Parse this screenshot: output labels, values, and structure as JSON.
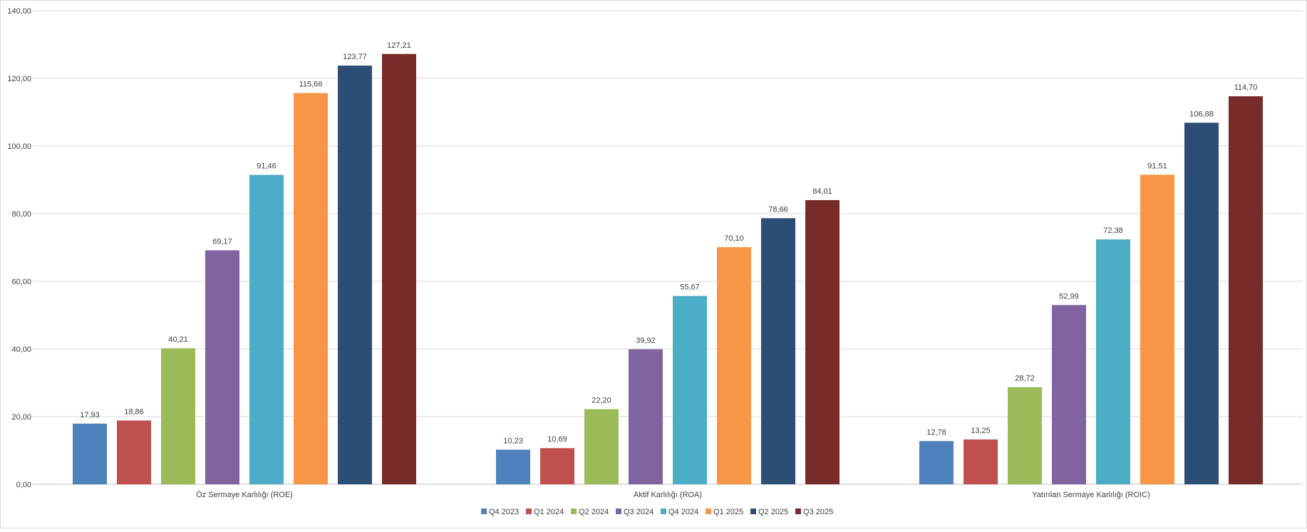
{
  "chart_data": {
    "type": "bar",
    "title": "",
    "xlabel": "",
    "ylabel": "",
    "ylim": [
      0,
      140
    ],
    "y_ticks": [
      "0,00",
      "20,00",
      "40,00",
      "60,00",
      "80,00",
      "100,00",
      "120,00",
      "140,00"
    ],
    "grid": true,
    "legend_position": "bottom",
    "categories": [
      "Öz Sermaye Karlılığı (ROE)",
      "Aktif Karlılığı (ROA)",
      "Yatırılan Sermaye Karlılığı (ROIC)"
    ],
    "series": [
      {
        "name": "Q4 2023",
        "color": "#4F81BD",
        "values": [
          17.93,
          10.23,
          12.78
        ],
        "labels": [
          "17,93",
          "10,23",
          "12,78"
        ]
      },
      {
        "name": "Q1 2024",
        "color": "#C0504D",
        "values": [
          18.86,
          10.69,
          13.25
        ],
        "labels": [
          "18,86",
          "10,69",
          "13,25"
        ]
      },
      {
        "name": "Q2 2024",
        "color": "#9BBB59",
        "values": [
          40.21,
          22.2,
          28.72
        ],
        "labels": [
          "40,21",
          "22,20",
          "28,72"
        ]
      },
      {
        "name": "Q3 2024",
        "color": "#8064A2",
        "values": [
          69.17,
          39.92,
          52.99
        ],
        "labels": [
          "69,17",
          "39,92",
          "52,99"
        ]
      },
      {
        "name": "Q4 2024",
        "color": "#4BACC6",
        "values": [
          91.46,
          55.67,
          72.38
        ],
        "labels": [
          "91,46",
          "55,67",
          "72,38"
        ]
      },
      {
        "name": "Q1 2025",
        "color": "#F79646",
        "values": [
          115.66,
          70.1,
          91.51
        ],
        "labels": [
          "115,66",
          "70,10",
          "91,51"
        ]
      },
      {
        "name": "Q2 2025",
        "color": "#2C4D75",
        "values": [
          123.77,
          78.66,
          106.88
        ],
        "labels": [
          "123,77",
          "78,66",
          "106,88"
        ]
      },
      {
        "name": "Q3 2025",
        "color": "#772C2A",
        "values": [
          127.21,
          84.01,
          114.7
        ],
        "labels": [
          "127,21",
          "84,01",
          "114,70"
        ]
      }
    ]
  }
}
